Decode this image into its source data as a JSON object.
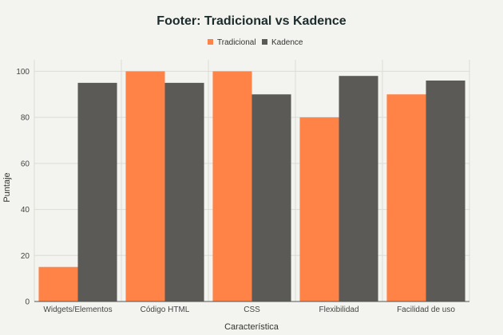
{
  "chart_data": {
    "type": "bar",
    "title": "Footer: Tradicional vs Kadence",
    "xlabel": "Característica",
    "ylabel": "Puntaje",
    "categories": [
      "Widgets/Elementos",
      "Código HTML",
      "CSS",
      "Flexibilidad",
      "Facilidad de uso"
    ],
    "series": [
      {
        "name": "Tradicional",
        "color": "#ff8247",
        "values": [
          15,
          100,
          100,
          80,
          90
        ]
      },
      {
        "name": "Kadence",
        "color": "#5b5a57",
        "values": [
          95,
          95,
          90,
          98,
          96
        ]
      }
    ],
    "ylim": [
      0,
      105
    ],
    "yticks": [
      0,
      20,
      40,
      60,
      80,
      100
    ],
    "grid": true,
    "legend_position": "top-center"
  }
}
